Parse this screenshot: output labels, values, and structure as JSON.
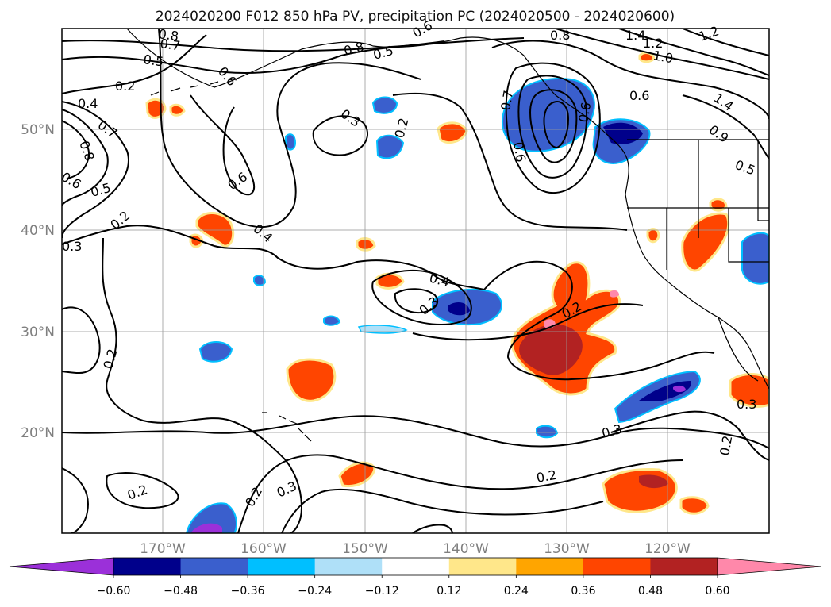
{
  "title": "2024020200 F012 850 hPa PV, precipitation PC (2024020500 - 2024020600)",
  "map": {
    "lon_range": [
      -180,
      -110
    ],
    "lat_range": [
      10,
      60
    ],
    "lat_labels": [
      "50°N",
      "40°N",
      "30°N",
      "20°N"
    ],
    "lon_labels": [
      "170°W",
      "160°W",
      "150°W",
      "140°W",
      "130°W",
      "120°W"
    ]
  },
  "colorbar": {
    "ticks": [
      "−0.60",
      "−0.48",
      "−0.36",
      "−0.24",
      "−0.12",
      "0.12",
      "0.24",
      "0.36",
      "0.48",
      "0.60"
    ],
    "colors": [
      "#9b30d9",
      "#00008b",
      "#3a5fcd",
      "#00bfff",
      "#afe0f8",
      "#ffffff",
      "#ffe78a",
      "#ffa500",
      "#ff4500",
      "#b22222",
      "#ff88aa"
    ],
    "extend": "both"
  },
  "contour_labels": [
    "0.8",
    "0.7",
    "0.5",
    "0.6",
    "0.8",
    "0.5",
    "0.6",
    "0.8",
    "1.4",
    "1.2",
    "1.2",
    "1.0",
    "0.2",
    "0.4",
    "0.7",
    "0.8",
    "0.3",
    "0.2",
    "0.6",
    "1.4",
    "0.9",
    "0.5",
    "0.6",
    "0.6",
    "0.5",
    "0.2",
    "0.4",
    "0.3",
    "0.4",
    "0.3",
    "0.2",
    "0.3",
    "0.3",
    "0.2",
    "0.2",
    "0.2",
    "0.3",
    "0.2",
    "0.2",
    "0.6",
    "0.7",
    "0.6"
  ],
  "colors": {
    "contour": "#000000",
    "grid": "#9a9a9a",
    "tick_label": "#7f7f7f"
  }
}
